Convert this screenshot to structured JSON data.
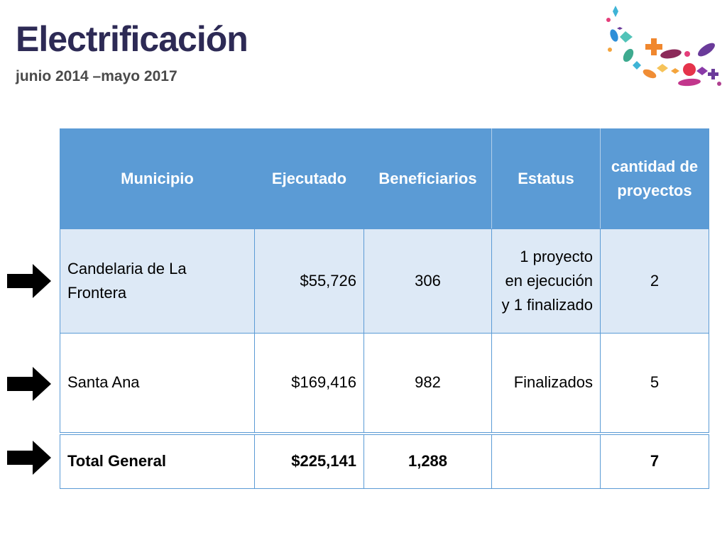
{
  "header": {
    "title": "Electrificación",
    "subtitle": "junio 2014 –mayo 2017"
  },
  "table": {
    "columns": [
      "Municipio",
      "Ejecutado",
      "Beneficiarios",
      "Estatus",
      "cantidad de proyectos"
    ],
    "rows": [
      {
        "municipio": "Candelaria de La Frontera",
        "ejecutado": "$55,726",
        "beneficiarios": "306",
        "estatus": "1 proyecto en ejecución y 1 finalizado",
        "cantidad": "2"
      },
      {
        "municipio": "Santa Ana",
        "ejecutado": "$169,416",
        "beneficiarios": "982",
        "estatus": "Finalizados",
        "cantidad": "5"
      }
    ],
    "total": {
      "municipio": "Total General",
      "ejecutado": "$225,141",
      "beneficiarios": "1,288",
      "estatus": "",
      "cantidad": "7"
    }
  },
  "colors": {
    "header_bg": "#5b9bd5",
    "row_alt_bg": "#dde9f6",
    "title": "#2d2a55",
    "arrow": "#000000"
  },
  "icons": [
    "right-arrow-icon",
    "confetti-decoration"
  ]
}
